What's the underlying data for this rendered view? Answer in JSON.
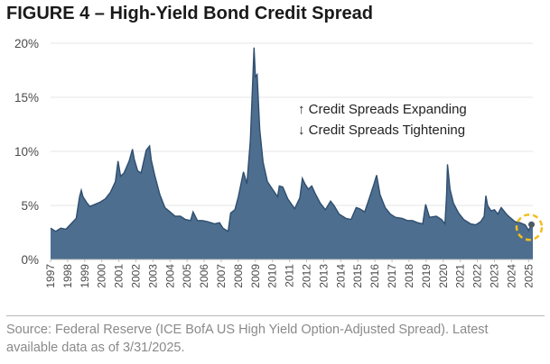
{
  "title": "FIGURE 4 – High-Yield Bond Credit Spread",
  "source": "Source: Federal Reserve (ICE BofA US High Yield Option-Adjusted Spread). Latest available data as of 3/31/2025.",
  "colors": {
    "area_fill": "#4d6e8e",
    "area_line": "#2f4e6f",
    "highlight": "#f2bd1d",
    "last_point": "#4d5a66"
  },
  "chart_data": {
    "type": "area",
    "title": "FIGURE 4 – High-Yield Bond Credit Spread",
    "xlabel": "",
    "ylabel": "",
    "ylim": [
      0,
      20
    ],
    "y_ticks": [
      "0%",
      "5%",
      "10%",
      "15%",
      "20%"
    ],
    "y_tick_values": [
      0,
      5,
      10,
      15,
      20
    ],
    "x_ticks": [
      "1997",
      "1998",
      "1999",
      "2000",
      "2001",
      "2002",
      "2003",
      "2004",
      "2005",
      "2006",
      "2007",
      "2008",
      "2009",
      "2010",
      "2011",
      "2012",
      "2013",
      "2014",
      "2015",
      "2016",
      "2017",
      "2018",
      "2019",
      "2020",
      "2021",
      "2022",
      "2023",
      "2024",
      "2025"
    ],
    "x_range": [
      1997.0,
      2025.25
    ],
    "series": [
      {
        "name": "High-Yield Bond Credit Spread (%)",
        "x": [
          1997.0,
          1997.3,
          1997.6,
          1997.9,
          1998.2,
          1998.5,
          1998.7,
          1998.8,
          1998.9,
          1999.1,
          1999.3,
          1999.6,
          1999.9,
          2000.2,
          2000.5,
          2000.8,
          2000.95,
          2001.1,
          2001.3,
          2001.6,
          2001.8,
          2001.9,
          2002.1,
          2002.3,
          2002.6,
          2002.8,
          2002.9,
          2003.1,
          2003.4,
          2003.7,
          2004.0,
          2004.3,
          2004.6,
          2004.9,
          2005.2,
          2005.35,
          2005.6,
          2005.9,
          2006.2,
          2006.6,
          2006.9,
          2007.1,
          2007.4,
          2007.55,
          2007.8,
          2008.0,
          2008.3,
          2008.5,
          2008.7,
          2008.83,
          2008.92,
          2009.0,
          2009.1,
          2009.25,
          2009.45,
          2009.7,
          2010.0,
          2010.3,
          2010.4,
          2010.6,
          2010.9,
          2011.3,
          2011.6,
          2011.75,
          2011.9,
          2012.1,
          2012.3,
          2012.5,
          2012.8,
          2013.1,
          2013.4,
          2013.6,
          2013.9,
          2014.3,
          2014.6,
          2014.9,
          2015.1,
          2015.4,
          2015.7,
          2015.95,
          2016.1,
          2016.3,
          2016.6,
          2016.9,
          2017.2,
          2017.6,
          2017.9,
          2018.2,
          2018.5,
          2018.8,
          2018.97,
          2019.2,
          2019.6,
          2019.9,
          2020.1,
          2020.2,
          2020.25,
          2020.4,
          2020.6,
          2020.9,
          2021.2,
          2021.6,
          2021.9,
          2022.2,
          2022.4,
          2022.5,
          2022.6,
          2022.8,
          2023.0,
          2023.2,
          2023.4,
          2023.7,
          2023.9,
          2024.2,
          2024.5,
          2024.8,
          2025.0,
          2025.25
        ],
        "values": [
          2.9,
          2.6,
          2.9,
          2.8,
          3.3,
          3.8,
          5.8,
          6.4,
          5.8,
          5.3,
          4.9,
          5.1,
          5.3,
          5.6,
          6.2,
          7.2,
          9.1,
          7.7,
          8.0,
          9.1,
          10.2,
          9.3,
          8.2,
          8.0,
          10.1,
          10.5,
          9.2,
          7.8,
          6.0,
          4.8,
          4.4,
          4.0,
          4.0,
          3.7,
          3.6,
          4.4,
          3.6,
          3.6,
          3.5,
          3.3,
          3.4,
          2.9,
          2.6,
          4.3,
          4.6,
          5.8,
          8.1,
          7.0,
          11.0,
          16.0,
          19.6,
          16.9,
          17.1,
          12.0,
          9.0,
          7.2,
          6.5,
          5.8,
          6.8,
          6.7,
          5.6,
          4.7,
          5.7,
          7.5,
          7.0,
          6.5,
          6.8,
          6.1,
          5.2,
          4.6,
          5.4,
          5.0,
          4.2,
          3.8,
          3.7,
          4.8,
          4.7,
          4.4,
          5.8,
          7.0,
          7.8,
          6.0,
          4.8,
          4.2,
          3.9,
          3.8,
          3.6,
          3.6,
          3.4,
          3.3,
          5.1,
          3.9,
          4.0,
          3.7,
          3.3,
          6.0,
          8.8,
          6.5,
          5.2,
          4.3,
          3.7,
          3.3,
          3.2,
          3.5,
          4.0,
          5.9,
          5.0,
          4.5,
          4.6,
          4.2,
          4.8,
          4.2,
          3.9,
          3.5,
          3.4,
          3.2,
          2.7,
          3.4
        ]
      }
    ],
    "annotations": [
      "↑ Credit Spreads Expanding",
      "↓ Credit Spreads Tightening"
    ],
    "highlight": "latest data point (3/31/2025) circled"
  }
}
